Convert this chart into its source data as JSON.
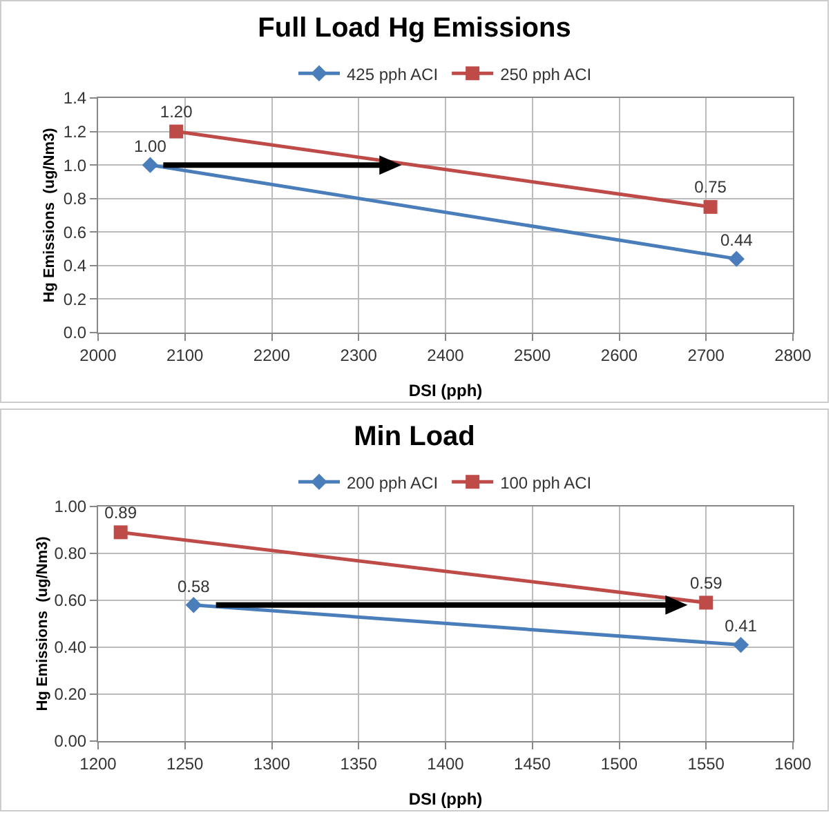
{
  "chart_data": [
    {
      "type": "line",
      "title": "Full Load Hg Emissions",
      "xlabel": "DSI (pph)",
      "ylabel": "Hg Emissions  (ug/Nm3)",
      "xlim": [
        2000,
        2800
      ],
      "xticks": [
        2000,
        2100,
        2200,
        2300,
        2400,
        2500,
        2600,
        2700,
        2800
      ],
      "ylim": [
        0,
        1.4
      ],
      "yticks": [
        {
          "value": 0,
          "label": "0.0"
        },
        0.2,
        0.4,
        0.6,
        0.8,
        {
          "value": 1,
          "label": "1.0"
        },
        1.2,
        1.4
      ],
      "grid": true,
      "legend": "top",
      "series": [
        {
          "name": "425 pph ACI",
          "color": "#4a7ebb",
          "marker": "diamond",
          "x": [
            2060,
            2735
          ],
          "values": [
            1.0,
            0.44
          ],
          "value_labels": [
            "1.00",
            "0.44"
          ]
        },
        {
          "name": "250 pph ACI",
          "color": "#be4b48",
          "marker": "square",
          "x": [
            2090,
            2705
          ],
          "values": [
            1.2,
            0.75
          ],
          "value_labels": [
            "1.20",
            "0.75"
          ]
        }
      ]
    },
    {
      "type": "line",
      "title": "Min Load",
      "xlabel": "DSI (pph)",
      "ylabel": "Hg Emissions  (ug/Nm3)",
      "xlim": [
        1200,
        1600
      ],
      "xticks": [
        1200,
        1250,
        1300,
        1350,
        1400,
        1450,
        1500,
        1550,
        1600
      ],
      "ylim": [
        0,
        1
      ],
      "yticks": [
        {
          "value": 0,
          "label": "0.00"
        },
        {
          "value": 0.2,
          "label": "0.20"
        },
        {
          "value": 0.4,
          "label": "0.40"
        },
        {
          "value": 0.6,
          "label": "0.60"
        },
        {
          "value": 0.8,
          "label": "0.80"
        },
        {
          "value": 1,
          "label": "1.00"
        }
      ],
      "grid": true,
      "legend": "top",
      "series": [
        {
          "name": "200 pph ACI",
          "color": "#4a7ebb",
          "marker": "diamond",
          "x": [
            1255,
            1570
          ],
          "values": [
            0.58,
            0.41
          ],
          "value_labels": [
            "0.58",
            "0.41"
          ]
        },
        {
          "name": "100 pph ACI",
          "color": "#be4b48",
          "marker": "square",
          "x": [
            1213,
            1550
          ],
          "values": [
            0.89,
            0.59
          ],
          "value_labels": [
            "0.89",
            "0.59"
          ]
        }
      ]
    }
  ]
}
